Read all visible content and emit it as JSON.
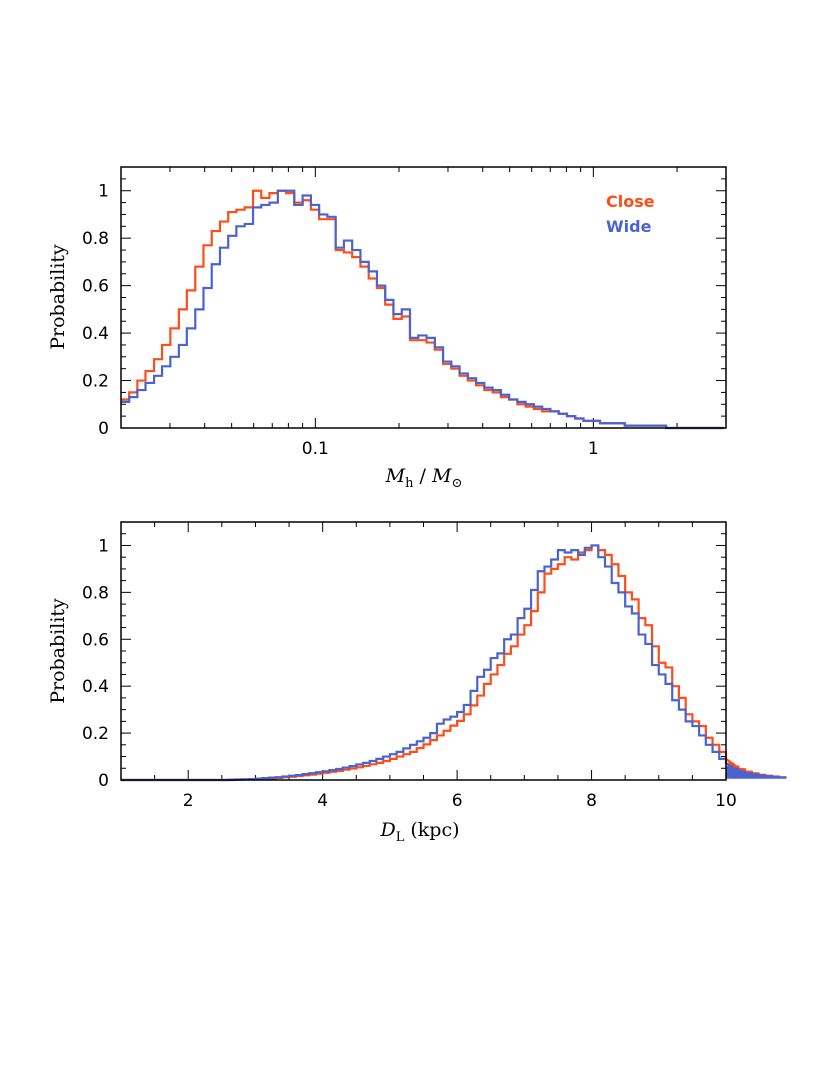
{
  "colors": {
    "close": "#ff4d1a",
    "wide": "#4a63d0",
    "axes": "#000000"
  },
  "chart_data": [
    {
      "type": "line",
      "subtype": "step-histogram",
      "title": "",
      "xlabel_main": "M",
      "xlabel_sub": "h",
      "xlabel_sep": " / ",
      "xlabel_main2": "M",
      "xlabel_sub2": "⊙",
      "ylabel": "Probability",
      "xscale": "log",
      "xlim": [
        0.02,
        3.0
      ],
      "ylim": [
        0,
        1.1
      ],
      "xticks": [
        {
          "value": 0.1,
          "label": "0.1"
        },
        {
          "value": 1,
          "label": "1"
        }
      ],
      "yticks": [
        {
          "value": 0,
          "label": "0"
        },
        {
          "value": 0.2,
          "label": "0.2"
        },
        {
          "value": 0.4,
          "label": "0.4"
        },
        {
          "value": 0.6,
          "label": "0.6"
        },
        {
          "value": 0.8,
          "label": "0.8"
        },
        {
          "value": 1,
          "label": "1"
        }
      ],
      "legend": {
        "position": "top-right",
        "entries": [
          "Close",
          "Wide"
        ]
      },
      "x_edges": [
        0.02,
        0.0214,
        0.0229,
        0.0245,
        0.0263,
        0.0281,
        0.0301,
        0.0323,
        0.0345,
        0.037,
        0.0396,
        0.0424,
        0.0454,
        0.0486,
        0.052,
        0.0557,
        0.0597,
        0.0639,
        0.0684,
        0.0733,
        0.0785,
        0.084,
        0.09,
        0.0964,
        0.1032,
        0.1105,
        0.1183,
        0.1267,
        0.1357,
        0.1453,
        0.1556,
        0.1666,
        0.1784,
        0.191,
        0.2046,
        0.219,
        0.2346,
        0.2512,
        0.269,
        0.288,
        0.3084,
        0.3302,
        0.3536,
        0.3786,
        0.4054,
        0.4341,
        0.4649,
        0.4978,
        0.5331,
        0.5708,
        0.6112,
        0.6545,
        0.7008,
        0.7505,
        0.8036,
        0.8605,
        0.9214,
        0.9866,
        1.0565,
        1.1313,
        1.2113,
        1.2971,
        1.389,
        1.4873,
        1.5926,
        1.7054,
        1.8261,
        1.9554,
        2.0939,
        2.2421,
        2.4009,
        2.5709,
        2.7529,
        2.9478
      ],
      "series": [
        {
          "name": "Close",
          "color_key": "close",
          "values": [
            0.12,
            0.15,
            0.2,
            0.24,
            0.29,
            0.35,
            0.42,
            0.5,
            0.58,
            0.68,
            0.77,
            0.83,
            0.87,
            0.91,
            0.92,
            0.93,
            1.0,
            0.97,
            0.99,
            1.0,
            0.99,
            0.95,
            0.96,
            0.92,
            0.88,
            0.88,
            0.75,
            0.74,
            0.72,
            0.68,
            0.63,
            0.59,
            0.52,
            0.46,
            0.47,
            0.37,
            0.37,
            0.36,
            0.33,
            0.27,
            0.25,
            0.22,
            0.2,
            0.18,
            0.16,
            0.15,
            0.13,
            0.12,
            0.1,
            0.09,
            0.08,
            0.07,
            0.07,
            0.06,
            0.05,
            0.04,
            0.03,
            0.03,
            0.02,
            0.02,
            0.02,
            0.01,
            0.01,
            0.01,
            0.01,
            0.01,
            0.0,
            0.0,
            0.0,
            0.0,
            0.0,
            0.0,
            0.0
          ]
        },
        {
          "name": "Wide",
          "color_key": "wide",
          "values": [
            0.11,
            0.13,
            0.16,
            0.19,
            0.22,
            0.26,
            0.3,
            0.35,
            0.42,
            0.5,
            0.59,
            0.69,
            0.76,
            0.81,
            0.85,
            0.86,
            0.93,
            0.94,
            0.95,
            1.0,
            1.0,
            0.94,
            0.98,
            0.94,
            0.9,
            0.89,
            0.76,
            0.79,
            0.75,
            0.7,
            0.66,
            0.6,
            0.54,
            0.48,
            0.5,
            0.38,
            0.39,
            0.38,
            0.34,
            0.28,
            0.26,
            0.23,
            0.21,
            0.19,
            0.17,
            0.16,
            0.14,
            0.12,
            0.11,
            0.1,
            0.09,
            0.08,
            0.07,
            0.06,
            0.05,
            0.04,
            0.03,
            0.03,
            0.02,
            0.02,
            0.02,
            0.01,
            0.01,
            0.01,
            0.01,
            0.01,
            0.0,
            0.0,
            0.0,
            0.0,
            0.0,
            0.0,
            0.0
          ]
        }
      ]
    },
    {
      "type": "line",
      "subtype": "step-histogram",
      "title": "",
      "xlabel_main": "D",
      "xlabel_sub": "L",
      "xlabel_rest": " (kpc)",
      "ylabel": "Probability",
      "xscale": "linear",
      "xlim": [
        1,
        10
      ],
      "ylim": [
        0,
        1.1
      ],
      "xticks": [
        {
          "value": 2,
          "label": "2"
        },
        {
          "value": 4,
          "label": "4"
        },
        {
          "value": 6,
          "label": "6"
        },
        {
          "value": 8,
          "label": "8"
        },
        {
          "value": 10,
          "label": "10"
        }
      ],
      "yticks": [
        {
          "value": 0,
          "label": "0"
        },
        {
          "value": 0.2,
          "label": "0.2"
        },
        {
          "value": 0.4,
          "label": "0.4"
        },
        {
          "value": 0.6,
          "label": "0.6"
        },
        {
          "value": 0.8,
          "label": "0.8"
        },
        {
          "value": 1,
          "label": "1"
        }
      ],
      "x_start": 1.0,
      "x_bin": 0.1,
      "series": [
        {
          "name": "Close",
          "color_key": "close",
          "values": [
            0.0,
            0.0,
            0.0,
            0.0,
            0.0,
            0.0,
            0.0,
            0.0,
            0.0,
            0.0,
            0.0,
            0.0,
            0.0,
            0.0,
            0.0,
            0.0,
            0.0,
            0.001,
            0.002,
            0.003,
            0.004,
            0.005,
            0.007,
            0.009,
            0.012,
            0.014,
            0.017,
            0.02,
            0.023,
            0.027,
            0.031,
            0.035,
            0.039,
            0.044,
            0.049,
            0.054,
            0.06,
            0.067,
            0.073,
            0.081,
            0.09,
            0.1,
            0.11,
            0.12,
            0.136,
            0.152,
            0.17,
            0.19,
            0.21,
            0.232,
            0.252,
            0.28,
            0.318,
            0.36,
            0.41,
            0.45,
            0.49,
            0.538,
            0.57,
            0.62,
            0.66,
            0.72,
            0.8,
            0.88,
            0.9,
            0.92,
            0.95,
            0.94,
            0.97,
            0.98,
            1.0,
            0.98,
            0.96,
            0.92,
            0.87,
            0.8,
            0.77,
            0.69,
            0.66,
            0.57,
            0.5,
            0.48,
            0.4,
            0.35,
            0.28,
            0.25,
            0.23,
            0.18,
            0.15,
            0.12,
            0.09,
            0.07,
            0.055,
            0.045,
            0.035,
            0.028,
            0.022,
            0.018,
            0.015,
            0.012
          ]
        },
        {
          "name": "Wide",
          "color_key": "wide",
          "values": [
            0.0,
            0.0,
            0.0,
            0.0,
            0.0,
            0.0,
            0.0,
            0.0,
            0.0,
            0.0,
            0.0,
            0.0,
            0.0,
            0.0,
            0.0,
            0.0,
            0.001,
            0.002,
            0.003,
            0.004,
            0.006,
            0.008,
            0.01,
            0.012,
            0.015,
            0.018,
            0.021,
            0.025,
            0.029,
            0.033,
            0.037,
            0.042,
            0.047,
            0.053,
            0.059,
            0.066,
            0.073,
            0.081,
            0.09,
            0.1,
            0.11,
            0.12,
            0.135,
            0.15,
            0.165,
            0.18,
            0.2,
            0.24,
            0.258,
            0.27,
            0.29,
            0.32,
            0.38,
            0.44,
            0.47,
            0.52,
            0.54,
            0.6,
            0.62,
            0.69,
            0.73,
            0.81,
            0.89,
            0.91,
            0.94,
            0.98,
            0.97,
            0.98,
            0.96,
            0.99,
            1.0,
            0.95,
            0.91,
            0.84,
            0.8,
            0.74,
            0.71,
            0.62,
            0.58,
            0.49,
            0.45,
            0.41,
            0.34,
            0.3,
            0.25,
            0.23,
            0.19,
            0.15,
            0.12,
            0.09,
            0.07,
            0.055,
            0.045,
            0.035,
            0.028,
            0.023,
            0.019,
            0.016,
            0.013,
            0.01
          ]
        }
      ]
    }
  ]
}
